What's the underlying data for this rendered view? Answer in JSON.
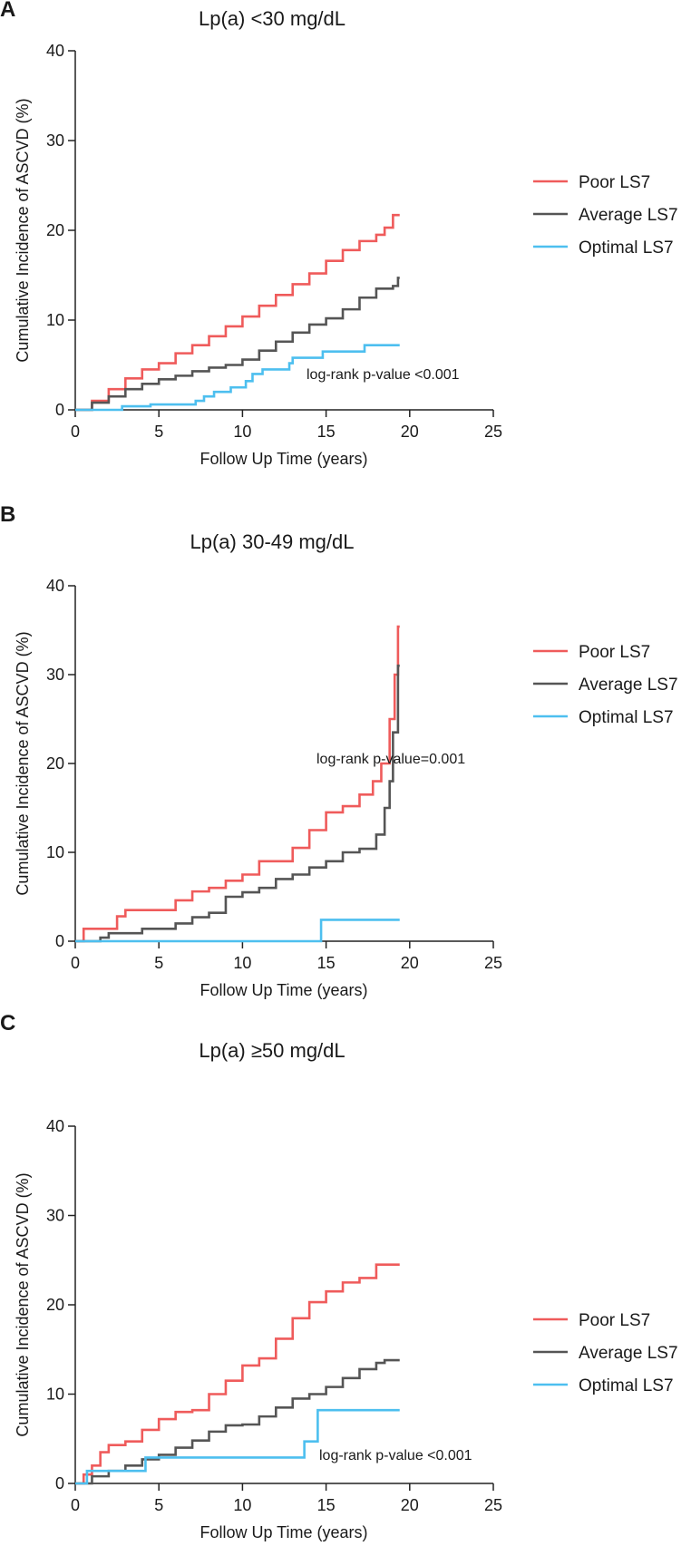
{
  "chart_data": [
    {
      "type": "line",
      "panel_label": "A",
      "title": "Lp(a) <30 mg/dL",
      "xlabel": "Follow Up Time (years)",
      "ylabel": "Cumulative Incidence of ASCVD (%)",
      "xlim": [
        0,
        25
      ],
      "ylim": [
        0,
        40
      ],
      "xticks": [
        "0",
        "5",
        "10",
        "15",
        "20",
        "25"
      ],
      "yticks": [
        "0",
        "10",
        "20",
        "30",
        "40"
      ],
      "annotation": "log-rank p-value <0.001",
      "legend_position": "right",
      "series": [
        {
          "name": "Poor LS7",
          "color": "#ef5b5b",
          "points": [
            [
              0,
              0
            ],
            [
              1,
              1
            ],
            [
              2,
              2.3
            ],
            [
              3,
              3.5
            ],
            [
              4,
              4.5
            ],
            [
              5,
              5.2
            ],
            [
              6,
              6.3
            ],
            [
              7,
              7.2
            ],
            [
              8,
              8.2
            ],
            [
              9,
              9.3
            ],
            [
              10,
              10.4
            ],
            [
              11,
              11.6
            ],
            [
              12,
              12.8
            ],
            [
              13,
              14
            ],
            [
              14,
              15.2
            ],
            [
              15,
              16.6
            ],
            [
              16,
              17.8
            ],
            [
              17,
              18.8
            ],
            [
              18,
              19.5
            ],
            [
              18.5,
              20.3
            ],
            [
              19,
              21.7
            ],
            [
              19.4,
              21.7
            ]
          ]
        },
        {
          "name": "Average LS7",
          "color": "#555555",
          "points": [
            [
              0,
              0
            ],
            [
              1,
              0.8
            ],
            [
              2,
              1.5
            ],
            [
              3,
              2.3
            ],
            [
              4,
              2.9
            ],
            [
              5,
              3.4
            ],
            [
              6,
              3.8
            ],
            [
              7,
              4.3
            ],
            [
              8,
              4.7
            ],
            [
              9,
              5.0
            ],
            [
              10,
              5.6
            ],
            [
              11,
              6.6
            ],
            [
              12,
              7.6
            ],
            [
              13,
              8.6
            ],
            [
              14,
              9.5
            ],
            [
              15,
              10.2
            ],
            [
              16,
              11.2
            ],
            [
              17,
              12.5
            ],
            [
              18,
              13.5
            ],
            [
              19,
              13.8
            ],
            [
              19.3,
              14.7
            ],
            [
              19.4,
              14.7
            ]
          ]
        },
        {
          "name": "Optimal LS7",
          "color": "#4dbfef",
          "points": [
            [
              0,
              0
            ],
            [
              2.8,
              0.4
            ],
            [
              4.5,
              0.6
            ],
            [
              7.2,
              1.0
            ],
            [
              7.7,
              1.5
            ],
            [
              8.3,
              2.0
            ],
            [
              9.3,
              2.5
            ],
            [
              10.2,
              3.2
            ],
            [
              10.6,
              4.0
            ],
            [
              11.2,
              4.5
            ],
            [
              12.8,
              5.2
            ],
            [
              13,
              5.8
            ],
            [
              14.8,
              6.5
            ],
            [
              17.3,
              7.2
            ],
            [
              19.4,
              7.2
            ]
          ]
        }
      ]
    },
    {
      "type": "line",
      "panel_label": "B",
      "title": "Lp(a) 30-49 mg/dL",
      "xlabel": "Follow Up Time (years)",
      "ylabel": "Cumulative Incidence of ASCVD (%)",
      "xlim": [
        0,
        25
      ],
      "ylim": [
        0,
        40
      ],
      "xticks": [
        "0",
        "5",
        "10",
        "15",
        "20",
        "25"
      ],
      "yticks": [
        "0",
        "10",
        "20",
        "30",
        "40"
      ],
      "annotation": "log-rank p-value=0.001",
      "legend_position": "right",
      "series": [
        {
          "name": "Poor LS7",
          "color": "#ef5b5b",
          "points": [
            [
              0,
              0
            ],
            [
              0.5,
              1.4
            ],
            [
              2,
              1.4
            ],
            [
              2.5,
              2.8
            ],
            [
              3,
              3.5
            ],
            [
              5,
              3.5
            ],
            [
              6,
              4.6
            ],
            [
              7,
              5.6
            ],
            [
              8,
              6.0
            ],
            [
              9,
              6.8
            ],
            [
              10,
              7.5
            ],
            [
              11,
              9.0
            ],
            [
              12,
              9.0
            ],
            [
              13,
              10.5
            ],
            [
              14,
              12.5
            ],
            [
              15,
              14.5
            ],
            [
              16,
              15.2
            ],
            [
              17,
              16.5
            ],
            [
              17.8,
              18
            ],
            [
              18.3,
              20
            ],
            [
              18.8,
              25
            ],
            [
              19.1,
              30
            ],
            [
              19.3,
              35.4
            ],
            [
              19.4,
              35.4
            ]
          ]
        },
        {
          "name": "Average LS7",
          "color": "#555555",
          "points": [
            [
              0,
              0
            ],
            [
              1.5,
              0.4
            ],
            [
              2,
              0.9
            ],
            [
              4,
              1.4
            ],
            [
              5.5,
              1.4
            ],
            [
              6,
              2.0
            ],
            [
              7,
              2.7
            ],
            [
              8,
              3.2
            ],
            [
              9,
              5.0
            ],
            [
              10,
              5.5
            ],
            [
              11,
              6.0
            ],
            [
              12,
              7.0
            ],
            [
              13,
              7.5
            ],
            [
              14,
              8.3
            ],
            [
              15,
              9.0
            ],
            [
              16,
              10.0
            ],
            [
              17,
              10.4
            ],
            [
              17.5,
              10.4
            ],
            [
              18,
              12
            ],
            [
              18.5,
              15
            ],
            [
              18.8,
              18
            ],
            [
              19,
              23.5
            ],
            [
              19.3,
              31.0
            ],
            [
              19.4,
              31.0
            ]
          ]
        },
        {
          "name": "Optimal LS7",
          "color": "#4dbfef",
          "points": [
            [
              0,
              0
            ],
            [
              14.7,
              2.4
            ],
            [
              19.4,
              2.4
            ]
          ]
        }
      ]
    },
    {
      "type": "line",
      "panel_label": "C",
      "title": "Lp(a) ≥50 mg/dL",
      "xlabel": "Follow Up Time (years)",
      "ylabel": "Cumulative Incidence of ASCVD (%)",
      "xlim": [
        0,
        25
      ],
      "ylim": [
        0,
        40
      ],
      "xticks": [
        "0",
        "5",
        "10",
        "15",
        "20",
        "25"
      ],
      "yticks": [
        "0",
        "10",
        "20",
        "30",
        "40"
      ],
      "annotation": "log-rank p-value <0.001",
      "legend_position": "right",
      "series": [
        {
          "name": "Poor LS7",
          "color": "#ef5b5b",
          "points": [
            [
              0,
              0
            ],
            [
              0.5,
              1
            ],
            [
              1,
              2
            ],
            [
              1.5,
              3.5
            ],
            [
              2,
              4.3
            ],
            [
              3,
              4.7
            ],
            [
              4,
              6
            ],
            [
              5,
              7.2
            ],
            [
              6,
              8
            ],
            [
              7,
              8.2
            ],
            [
              8,
              10
            ],
            [
              9,
              11.5
            ],
            [
              10,
              13.2
            ],
            [
              11,
              14
            ],
            [
              12,
              16.2
            ],
            [
              13,
              18.5
            ],
            [
              14,
              20.3
            ],
            [
              15,
              21.5
            ],
            [
              16,
              22.5
            ],
            [
              17,
              23
            ],
            [
              18,
              24.5
            ],
            [
              19.4,
              24.5
            ]
          ]
        },
        {
          "name": "Average LS7",
          "color": "#555555",
          "points": [
            [
              0,
              0
            ],
            [
              1,
              0.8
            ],
            [
              2,
              1.4
            ],
            [
              3,
              2
            ],
            [
              4,
              2.7
            ],
            [
              5,
              3.2
            ],
            [
              6,
              4
            ],
            [
              7,
              4.8
            ],
            [
              8,
              5.8
            ],
            [
              9,
              6.5
            ],
            [
              10,
              6.6
            ],
            [
              11,
              7.5
            ],
            [
              12,
              8.5
            ],
            [
              13,
              9.5
            ],
            [
              14,
              10
            ],
            [
              15,
              10.8
            ],
            [
              16,
              11.8
            ],
            [
              17,
              12.8
            ],
            [
              18,
              13.5
            ],
            [
              18.5,
              13.8
            ],
            [
              19.4,
              13.8
            ]
          ]
        },
        {
          "name": "Optimal LS7",
          "color": "#4dbfef",
          "points": [
            [
              0,
              0
            ],
            [
              0.7,
              1.4
            ],
            [
              4,
              1.4
            ],
            [
              4.2,
              2.9
            ],
            [
              13.6,
              2.9
            ],
            [
              13.7,
              4.7
            ],
            [
              14.3,
              4.7
            ],
            [
              14.5,
              8.2
            ],
            [
              19.4,
              8.2
            ]
          ]
        }
      ]
    }
  ]
}
